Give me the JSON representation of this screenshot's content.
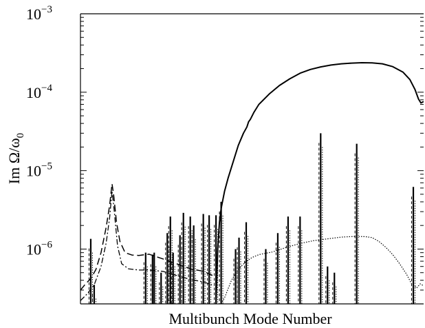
{
  "chart_data": {
    "type": "line",
    "title": "",
    "xlabel": "Multibunch Mode Number",
    "ylabel": {
      "prefix": "Im Ω/ω",
      "subscript": "0"
    },
    "yscale": "log",
    "ylim": [
      2e-07,
      0.001
    ],
    "xlim": [
      0,
      1000
    ],
    "grid": false,
    "legend": "none",
    "y_ticks": [
      {
        "value": 0.001,
        "base": "10",
        "exp": "−3"
      },
      {
        "value": 0.0001,
        "base": "10",
        "exp": "−4"
      },
      {
        "value": 1e-05,
        "base": "10",
        "exp": "−5"
      },
      {
        "value": 1e-06,
        "base": "10",
        "exp": "−6"
      }
    ],
    "series": [
      {
        "style": "solid",
        "points": [
          [
            395,
            2e-07
          ],
          [
            400,
            1e-06
          ],
          [
            405,
            2.2e-06
          ],
          [
            410,
            3.3e-06
          ],
          [
            420,
            5.5e-06
          ],
          [
            430,
            8e-06
          ],
          [
            445,
            1.3e-05
          ],
          [
            460,
            2.1e-05
          ],
          [
            475,
            3e-05
          ],
          [
            485,
            3.6e-05
          ],
          [
            490,
            4.2e-05
          ],
          [
            495,
            4.5e-05
          ],
          [
            505,
            5.5e-05
          ],
          [
            520,
            7e-05
          ],
          [
            550,
            9.5e-05
          ],
          [
            580,
            0.000122
          ],
          [
            610,
            0.000148
          ],
          [
            640,
            0.000175
          ],
          [
            670,
            0.000195
          ],
          [
            700,
            0.00021
          ],
          [
            730,
            0.000222
          ],
          [
            760,
            0.00023
          ],
          [
            790,
            0.000235
          ],
          [
            820,
            0.000238
          ],
          [
            850,
            0.000237
          ],
          [
            880,
            0.00023
          ],
          [
            910,
            0.000212
          ],
          [
            940,
            0.00018
          ],
          [
            960,
            0.000145
          ],
          [
            975,
            0.000108
          ],
          [
            985,
            8.2e-05
          ],
          [
            992,
            7.3e-05
          ],
          [
            1000,
            7.6e-05
          ]
        ]
      },
      {
        "style": "dotted",
        "points": [
          [
            410,
            2e-07
          ],
          [
            420,
            2.4e-07
          ],
          [
            440,
            4e-07
          ],
          [
            460,
            5.5e-07
          ],
          [
            480,
            6.8e-07
          ],
          [
            500,
            7.8e-07
          ],
          [
            520,
            8.5e-07
          ],
          [
            560,
            9.2e-07
          ],
          [
            600,
            1.05e-06
          ],
          [
            640,
            1.18e-06
          ],
          [
            680,
            1.28e-06
          ],
          [
            720,
            1.35e-06
          ],
          [
            760,
            1.42e-06
          ],
          [
            800,
            1.45e-06
          ],
          [
            830,
            1.44e-06
          ],
          [
            850,
            1.4e-06
          ],
          [
            870,
            1.25e-06
          ],
          [
            890,
            1.05e-06
          ],
          [
            910,
            8.5e-07
          ],
          [
            930,
            6.5e-07
          ],
          [
            950,
            4.8e-07
          ],
          [
            965,
            3.6e-07
          ],
          [
            980,
            3.2e-07
          ],
          [
            990,
            3.6e-07
          ],
          [
            1000,
            3.4e-07
          ]
        ]
      },
      {
        "style": "long-dashed",
        "points": [
          [
            0,
            3e-07
          ],
          [
            15,
            3.6e-07
          ],
          [
            30,
            4.2e-07
          ],
          [
            45,
            5.5e-07
          ],
          [
            60,
            9e-07
          ],
          [
            75,
            1.9e-06
          ],
          [
            85,
            3.6e-06
          ],
          [
            92,
            6.8e-06
          ],
          [
            97,
            4.8e-06
          ],
          [
            105,
            2.2e-06
          ],
          [
            115,
            1.25e-06
          ],
          [
            130,
            9e-07
          ],
          [
            150,
            8.4e-07
          ],
          [
            170,
            8.3e-07
          ],
          [
            200,
            8.6e-07
          ],
          [
            240,
            7.5e-07
          ],
          [
            280,
            6.5e-07
          ],
          [
            320,
            5.6e-07
          ],
          [
            360,
            5.2e-07
          ],
          [
            390,
            4.5e-07
          ]
        ]
      },
      {
        "style": "dash-dot",
        "points": [
          [
            0,
            2.2e-07
          ],
          [
            20,
            2.7e-07
          ],
          [
            40,
            3.5e-07
          ],
          [
            60,
            6e-07
          ],
          [
            75,
            1.2e-06
          ],
          [
            85,
            2.5e-06
          ],
          [
            92,
            5.5e-06
          ],
          [
            98,
            3.2e-06
          ],
          [
            108,
            1.1e-06
          ],
          [
            120,
            6.5e-07
          ],
          [
            140,
            5.6e-07
          ],
          [
            170,
            5.4e-07
          ],
          [
            200,
            5.4e-07
          ],
          [
            240,
            5.2e-07
          ],
          [
            280,
            4.6e-07
          ],
          [
            320,
            4.1e-07
          ],
          [
            360,
            3.8e-07
          ],
          [
            390,
            3.4e-07
          ]
        ]
      }
    ],
    "spikes": [
      {
        "x": 30,
        "top": 1.35e-06
      },
      {
        "x": 40,
        "top": 3.5e-07
      },
      {
        "x": 190,
        "top": 9e-07
      },
      {
        "x": 210,
        "top": 8.5e-07
      },
      {
        "x": 215,
        "top": 9e-07
      },
      {
        "x": 235,
        "top": 5e-07
      },
      {
        "x": 253,
        "top": 1.6e-06
      },
      {
        "x": 262,
        "top": 2.6e-06
      },
      {
        "x": 270,
        "top": 9e-07
      },
      {
        "x": 290,
        "top": 1.5e-06
      },
      {
        "x": 300,
        "top": 2.9e-06
      },
      {
        "x": 320,
        "top": 2.6e-06
      },
      {
        "x": 330,
        "top": 2e-06
      },
      {
        "x": 358,
        "top": 2.8e-06
      },
      {
        "x": 375,
        "top": 2.7e-06
      },
      {
        "x": 395,
        "top": 2.7e-06
      },
      {
        "x": 410,
        "top": 4e-06
      },
      {
        "x": 452,
        "top": 1e-06
      },
      {
        "x": 462,
        "top": 1.4e-06
      },
      {
        "x": 483,
        "top": 2.2e-06
      },
      {
        "x": 540,
        "top": 1e-06
      },
      {
        "x": 575,
        "top": 1.6e-06
      },
      {
        "x": 605,
        "top": 2.6e-06
      },
      {
        "x": 640,
        "top": 2.6e-06
      },
      {
        "x": 700,
        "top": 3e-05
      },
      {
        "x": 720,
        "top": 6e-07
      },
      {
        "x": 740,
        "top": 5e-07
      },
      {
        "x": 805,
        "top": 2.2e-05
      },
      {
        "x": 970,
        "top": 6.2e-06
      }
    ]
  }
}
